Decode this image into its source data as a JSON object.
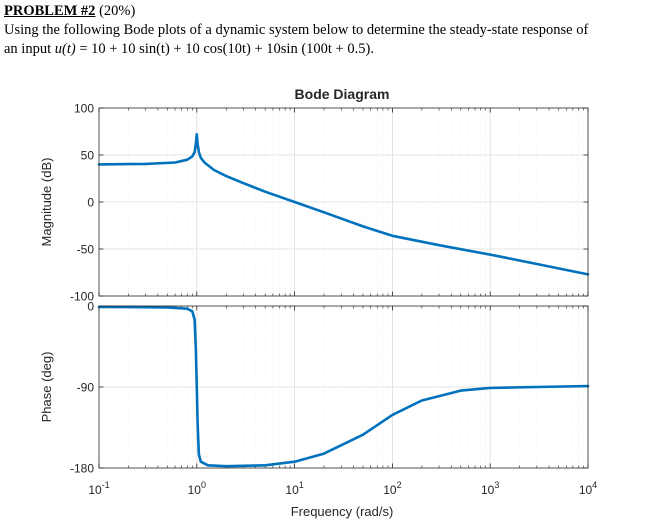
{
  "problem": {
    "heading": "PROBLEM #2",
    "weight": "(20%)",
    "line1": "Using the following Bode plots of a dynamic system below to determine the steady-state response of",
    "line2_prefix": "an input",
    "input_lhs": "u(t)",
    "input_rhs": "10 + 10 sin(t) + 10 cos(10t) + 10sin (100t + 0.5)."
  },
  "chart_data": {
    "type": "line",
    "title": "Bode Diagram",
    "xlabel": "Frequency (rad/s)",
    "xscale": "log",
    "xlim": [
      0.1,
      10000
    ],
    "x_ticks": [
      {
        "base": "10",
        "exp": "-1",
        "value": 0.1
      },
      {
        "base": "10",
        "exp": "0",
        "value": 1
      },
      {
        "base": "10",
        "exp": "1",
        "value": 10
      },
      {
        "base": "10",
        "exp": "2",
        "value": 100
      },
      {
        "base": "10",
        "exp": "3",
        "value": 1000
      },
      {
        "base": "10",
        "exp": "4",
        "value": 10000
      }
    ],
    "grid": true,
    "line_color": "#0072bd",
    "panels": [
      {
        "name": "magnitude",
        "ylabel": "Magnitude (dB)",
        "ylim": [
          -100,
          100
        ],
        "yticks": [
          100,
          50,
          0,
          -50,
          -100
        ],
        "ytick_labels": [
          "100",
          "50",
          "0",
          "-50",
          "-100"
        ],
        "x": [
          0.1,
          0.3,
          0.6,
          0.8,
          0.9,
          0.95,
          0.98,
          1.0,
          1.02,
          1.05,
          1.1,
          1.2,
          1.5,
          2,
          3,
          5,
          10,
          20,
          50,
          100,
          300,
          1000,
          3000,
          10000
        ],
        "y": [
          40,
          40.5,
          42,
          45,
          48.5,
          53,
          62,
          72,
          62,
          53,
          47,
          42,
          34,
          27.5,
          20,
          11,
          0,
          -11,
          -26,
          -36,
          -46,
          -56,
          -66,
          -77
        ]
      },
      {
        "name": "phase",
        "ylabel": "Phase (deg)",
        "ylim": [
          -180,
          0
        ],
        "yticks": [
          0,
          -90,
          -180
        ],
        "ytick_labels": [
          "0",
          "-90",
          "-180"
        ],
        "x": [
          0.1,
          0.5,
          0.8,
          0.9,
          0.95,
          0.98,
          1.0,
          1.02,
          1.05,
          1.1,
          1.3,
          2,
          5,
          10,
          20,
          50,
          100,
          200,
          500,
          1000,
          3000,
          10000
        ],
        "y": [
          -1,
          -1.5,
          -3,
          -6,
          -15,
          -50,
          -90,
          -130,
          -165,
          -173,
          -177,
          -178,
          -177,
          -173,
          -164,
          -143,
          -121,
          -105,
          -94,
          -91,
          -90,
          -89
        ]
      }
    ]
  }
}
